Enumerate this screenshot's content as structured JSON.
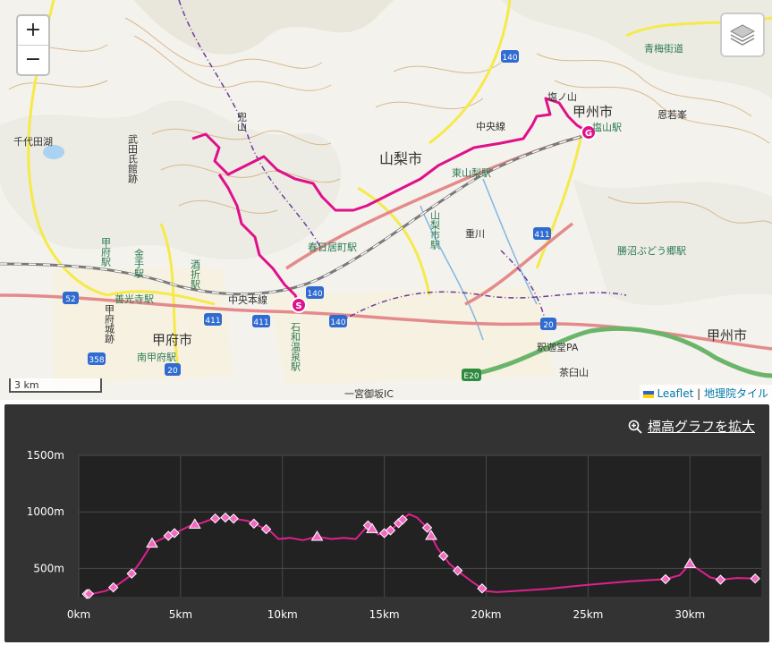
{
  "map": {
    "zoom_in_label": "+",
    "zoom_out_label": "−",
    "scale_label": "3 km",
    "attribution": {
      "leaflet": "Leaflet",
      "separator": " | ",
      "tiles": "地理院タイル"
    },
    "labels": [
      "山梨市",
      "甲州市",
      "甲州市",
      "甲府市",
      "千代田湖",
      "武田氏館跡",
      "東山梨駅",
      "春日居町駅",
      "山梨市駅",
      "甲府駅",
      "金手駅",
      "酒折駅",
      "善光寺駅",
      "南甲府駅",
      "石和温泉駅",
      "勝沼ぶどう郷駅",
      "塩山駅",
      "甲府城跡",
      "中央本線",
      "重川",
      "青梅街道",
      "恩若峯",
      "釈迦堂PA",
      "茶臼山",
      "一宮御坂IC",
      "塩ノ山",
      "兜山",
      "中央線"
    ],
    "route_labels": [
      "52",
      "140",
      "140",
      "140",
      "411",
      "411",
      "411",
      "358",
      "20",
      "20",
      "E20"
    ],
    "markers": {
      "start": "S",
      "goal": "G"
    }
  },
  "panel": {
    "expand_label": "標高グラフを拡大",
    "icon": "zoom-in-icon"
  },
  "chart_data": {
    "type": "line",
    "title": "",
    "xlabel": "",
    "ylabel": "",
    "xlim": [
      0,
      33.5
    ],
    "ylim": [
      250,
      1500
    ],
    "x_ticks": [
      "0km",
      "5km",
      "10km",
      "15km",
      "20km",
      "25km",
      "30km"
    ],
    "y_ticks": [
      "500m",
      "1000m",
      "1500m"
    ],
    "series": [
      {
        "color": "#e0208e",
        "x": [
          0.2,
          0.5,
          0.8,
          1.3,
          1.8,
          2.5,
          3.0,
          3.6,
          4.3,
          4.8,
          5.5,
          6.0,
          6.6,
          7.2,
          7.6,
          8.3,
          8.8,
          9.4,
          9.8,
          10.4,
          11.0,
          11.7,
          12.4,
          13.0,
          13.6,
          14.2,
          14.7,
          15.2,
          15.7,
          16.2,
          16.6,
          17.1,
          17.6,
          18.2,
          18.8,
          19.4,
          20.0,
          20.5,
          21.0,
          23.0,
          25.0,
          27.0,
          28.8,
          29.5,
          30.0,
          30.6,
          31.0,
          31.5,
          32.3,
          33.3
        ],
        "y": [
          270,
          275,
          280,
          300,
          340,
          430,
          550,
          720,
          780,
          820,
          880,
          900,
          940,
          950,
          940,
          920,
          880,
          830,
          760,
          770,
          750,
          780,
          760,
          770,
          760,
          880,
          800,
          820,
          900,
          980,
          950,
          860,
          680,
          540,
          450,
          370,
          300,
          290,
          295,
          320,
          355,
          385,
          405,
          440,
          540,
          470,
          420,
          400,
          415,
          410
        ]
      }
    ],
    "markers_diamond_x": [
      0.4,
      0.5,
      1.7,
      2.6,
      4.4,
      4.7,
      6.7,
      7.2,
      7.6,
      8.6,
      9.2,
      14.2,
      15.0,
      15.3,
      15.7,
      15.9,
      17.1,
      17.9,
      18.6,
      19.8,
      28.8,
      31.5,
      33.2
    ],
    "markers_triangle_x": [
      3.6,
      5.7,
      11.7,
      14.4,
      17.3,
      30.0
    ]
  }
}
